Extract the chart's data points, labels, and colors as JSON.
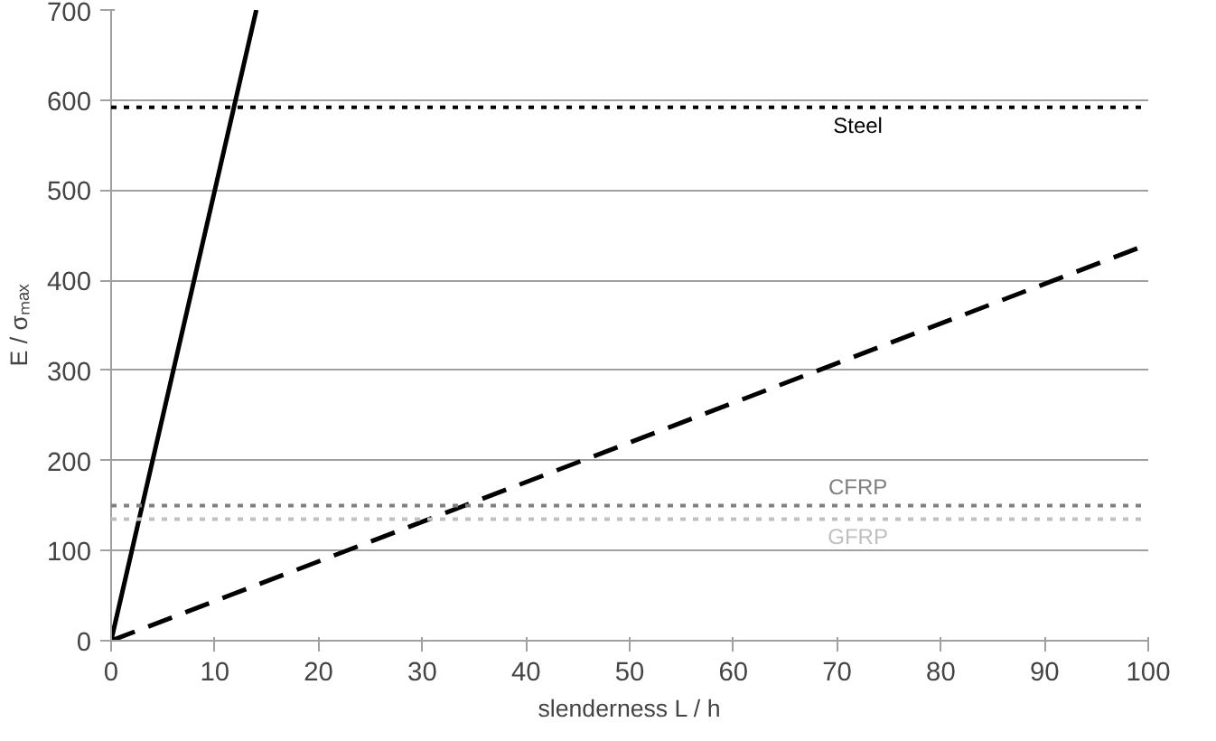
{
  "chart_data": {
    "type": "line",
    "xlabel": "slenderness L / h",
    "ylabel": "E / σₘₐₓ",
    "xlim": [
      0,
      100
    ],
    "ylim": [
      0,
      700
    ],
    "xticks": [
      0,
      10,
      20,
      30,
      40,
      50,
      60,
      70,
      80,
      90,
      100
    ],
    "yticks": [
      0,
      100,
      200,
      300,
      400,
      500,
      600,
      700
    ],
    "grid": "y",
    "series": [
      {
        "color": "#000000",
        "x": [
          0,
          14
        ],
        "values": [
          0,
          700
        ],
        "line_style": "solid"
      },
      {
        "color": "#000000",
        "x": [
          0,
          100
        ],
        "values": [
          0,
          440
        ],
        "line_style": "dashed"
      }
    ],
    "ref_lines": [
      {
        "axis": "y",
        "value": 592,
        "label": "Steel",
        "color": "#000000",
        "line_style": "dotted"
      },
      {
        "axis": "y",
        "value": 150,
        "label": "CFRP",
        "color": "#808080",
        "line_style": "dotted"
      },
      {
        "axis": "y",
        "value": 135,
        "label": "GFRP",
        "color": "#c0c0c0",
        "line_style": "dotted"
      }
    ]
  }
}
